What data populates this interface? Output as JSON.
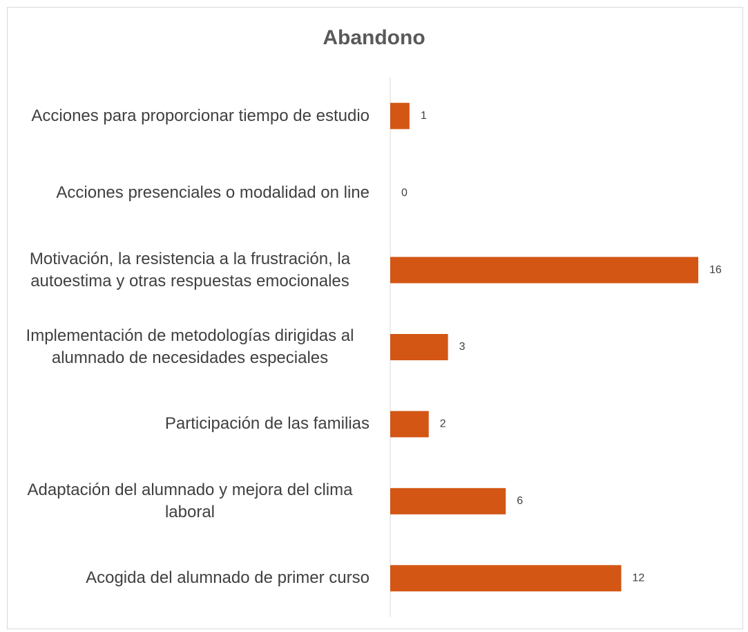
{
  "chart_data": {
    "type": "bar",
    "orientation": "horizontal",
    "title": "Abandono",
    "categories": [
      "Acciones para proporcionar tiempo de estudio",
      "Acciones presenciales o modalidad on line",
      "Motivación, la resistencia a la frustración, la autoestima y otras respuestas emocionales",
      "Implementación de metodologías dirigidas al alumnado de necesidades especiales",
      "Participación de las familias",
      "Adaptación del alumnado y mejora del clima laboral",
      "Acogida del alumnado de primer curso"
    ],
    "values": [
      1,
      0,
      16,
      3,
      2,
      6,
      12
    ],
    "color": "#d35614"
  }
}
